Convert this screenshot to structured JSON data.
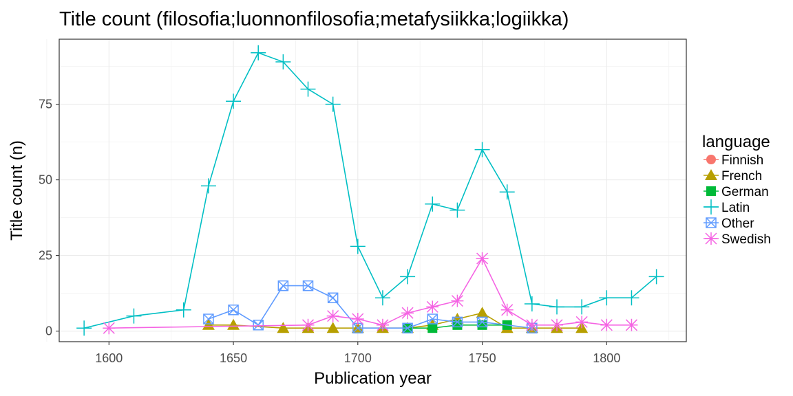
{
  "chart_data": {
    "type": "line",
    "title": "Title count (filosofia;luonnonfilosofia;metafysiikka;logiikka)",
    "xlabel": "Publication year",
    "ylabel": "Title count (n)",
    "xlim": [
      1580,
      1832
    ],
    "ylim": [
      -3.5,
      96.5
    ],
    "x_ticks": [
      1600,
      1650,
      1700,
      1750,
      1800
    ],
    "y_ticks": [
      0,
      25,
      50,
      75
    ],
    "grid": true,
    "legend": {
      "title": "language",
      "position": "right"
    },
    "series": [
      {
        "name": "Finnish",
        "color": "#F8766D",
        "marker": "circle",
        "points": []
      },
      {
        "name": "French",
        "color": "#B79F00",
        "marker": "triangle",
        "points": [
          [
            1640,
            2
          ],
          [
            1650,
            2
          ],
          [
            1670,
            1
          ],
          [
            1680,
            1
          ],
          [
            1690,
            1
          ],
          [
            1700,
            1
          ],
          [
            1710,
            1
          ],
          [
            1720,
            1
          ],
          [
            1730,
            2
          ],
          [
            1740,
            4
          ],
          [
            1750,
            6
          ],
          [
            1760,
            1
          ],
          [
            1770,
            1
          ],
          [
            1780,
            1
          ],
          [
            1790,
            1
          ]
        ]
      },
      {
        "name": "German",
        "color": "#00BA38",
        "marker": "square",
        "points": [
          [
            1720,
            1
          ],
          [
            1730,
            1
          ],
          [
            1740,
            2
          ],
          [
            1750,
            2
          ],
          [
            1760,
            2
          ]
        ]
      },
      {
        "name": "Latin",
        "color": "#00BFC4",
        "marker": "plus",
        "points": [
          [
            1590,
            1
          ],
          [
            1610,
            5
          ],
          [
            1630,
            7
          ],
          [
            1640,
            48
          ],
          [
            1650,
            76
          ],
          [
            1660,
            92
          ],
          [
            1670,
            89
          ],
          [
            1680,
            80
          ],
          [
            1690,
            75
          ],
          [
            1700,
            28
          ],
          [
            1710,
            11
          ],
          [
            1720,
            18
          ],
          [
            1730,
            42
          ],
          [
            1740,
            40
          ],
          [
            1750,
            60
          ],
          [
            1760,
            46
          ],
          [
            1770,
            9
          ],
          [
            1780,
            8
          ],
          [
            1790,
            8
          ],
          [
            1800,
            11
          ],
          [
            1810,
            11
          ],
          [
            1820,
            18
          ]
        ]
      },
      {
        "name": "Other",
        "color": "#619CFF",
        "marker": "boxcross",
        "points": [
          [
            1640,
            4
          ],
          [
            1650,
            7
          ],
          [
            1660,
            2
          ],
          [
            1670,
            15
          ],
          [
            1680,
            15
          ],
          [
            1690,
            11
          ],
          [
            1700,
            1
          ],
          [
            1720,
            1
          ],
          [
            1730,
            4
          ],
          [
            1740,
            3
          ],
          [
            1750,
            3
          ],
          [
            1770,
            1
          ]
        ]
      },
      {
        "name": "Swedish",
        "color": "#F564E3",
        "marker": "asterisk",
        "points": [
          [
            1600,
            1
          ],
          [
            1680,
            2
          ],
          [
            1690,
            5
          ],
          [
            1700,
            4
          ],
          [
            1710,
            2
          ],
          [
            1720,
            6
          ],
          [
            1730,
            8
          ],
          [
            1740,
            10
          ],
          [
            1750,
            24
          ],
          [
            1760,
            7
          ],
          [
            1770,
            2
          ],
          [
            1780,
            2
          ],
          [
            1790,
            3
          ],
          [
            1800,
            2
          ],
          [
            1810,
            2
          ]
        ]
      }
    ]
  }
}
